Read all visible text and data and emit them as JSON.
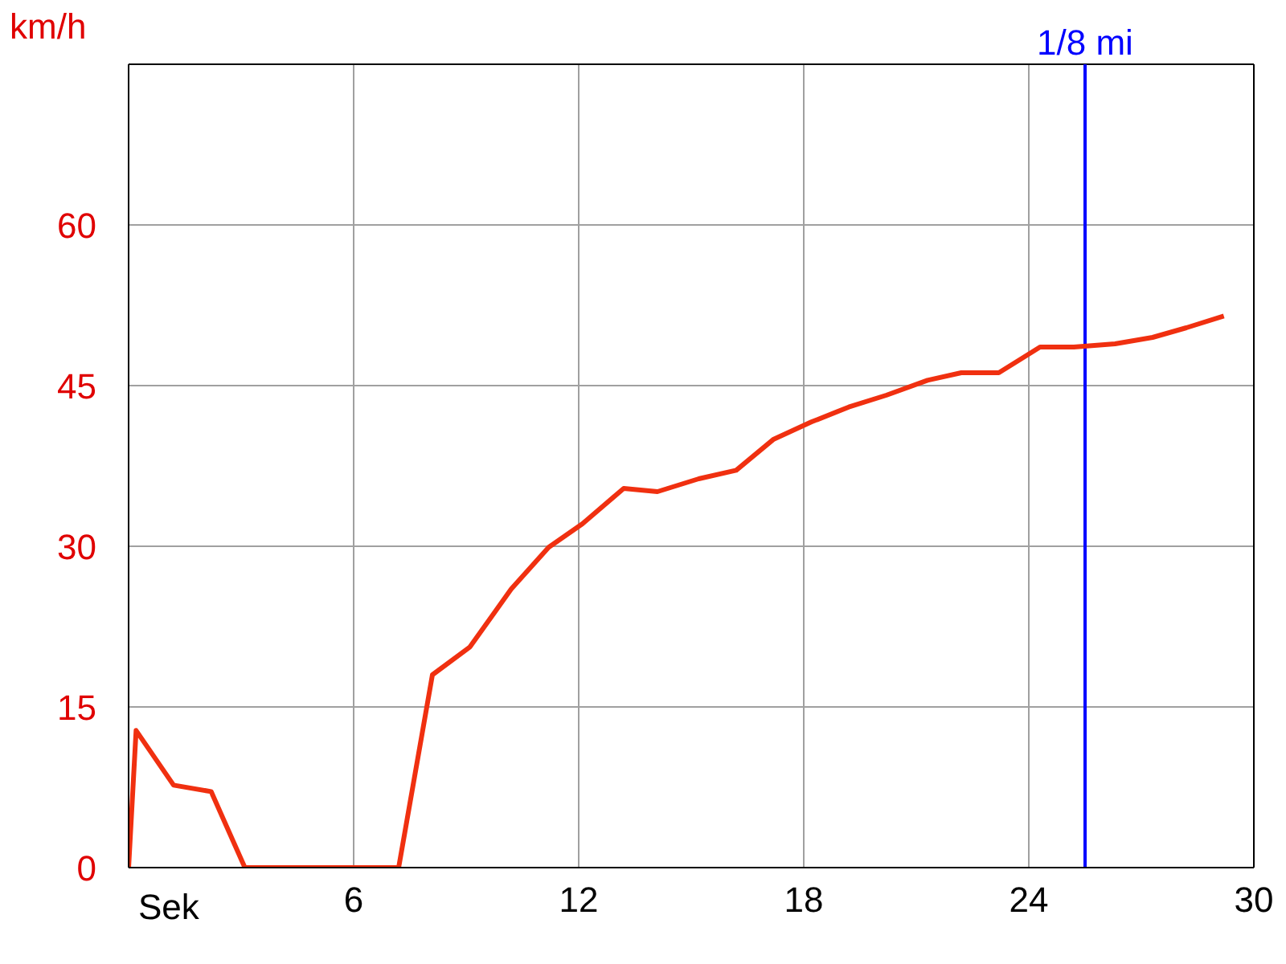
{
  "chart_data": {
    "type": "line",
    "xlabel": "Sek",
    "ylabel": "km/h",
    "xlim": [
      0,
      30
    ],
    "xticks": [
      6,
      12,
      18,
      24,
      30
    ],
    "ylim": [
      0,
      75
    ],
    "yticks": [
      0,
      15,
      30,
      45,
      60
    ],
    "grid": true,
    "marker": "none",
    "line_style": "solid",
    "ref_lines": [
      {
        "axis": "x",
        "value": 25.5,
        "label": "1/8 mi",
        "color": "#0000ff"
      }
    ],
    "series": [
      {
        "color": "#f03010",
        "x": [
          0,
          0.2,
          1.2,
          2.2,
          3.1,
          7.2,
          8.1,
          9.1,
          10.2,
          11.2,
          12.1,
          13.2,
          14.1,
          15.2,
          16.2,
          17.2,
          18.2,
          19.2,
          20.2,
          21.3,
          22.2,
          23.2,
          24.3,
          25.2,
          26.3,
          27.3,
          28.2,
          29.2
        ],
        "values": [
          0,
          12.8,
          7.7,
          7.1,
          0,
          0,
          18,
          20.6,
          26,
          29.9,
          32.1,
          35.4,
          35.1,
          36.3,
          37.1,
          40,
          41.6,
          43,
          44.1,
          45.5,
          46.2,
          46.2,
          48.6,
          48.6,
          48.9,
          49.5,
          50.4,
          51.5
        ]
      }
    ]
  }
}
